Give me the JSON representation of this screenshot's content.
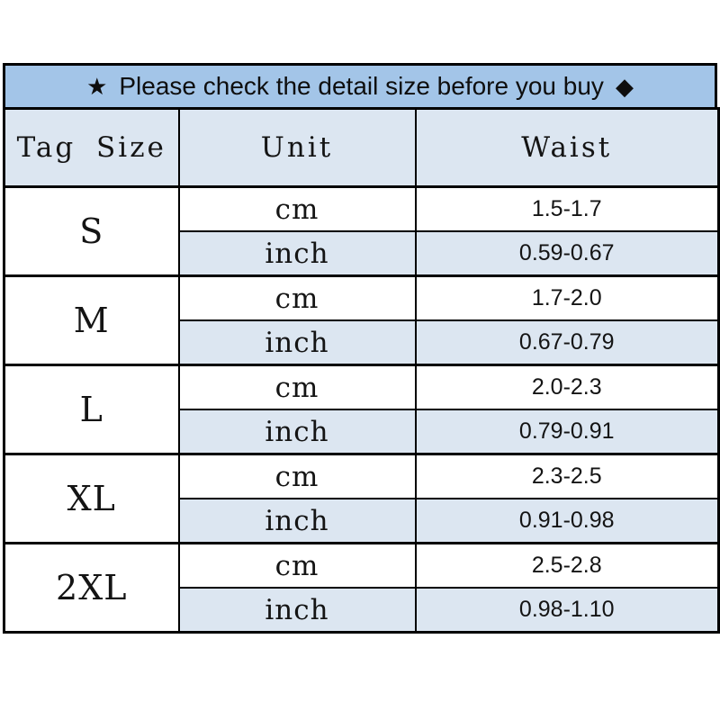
{
  "banner": {
    "star_icon": "★",
    "diamond_icon": "◆",
    "text": "Please check the detail size before you buy"
  },
  "table": {
    "headers": {
      "tag_size": "Tag Size",
      "unit": "Unit",
      "waist": "Waist"
    },
    "unit_labels": {
      "cm": "cm",
      "inch": "inch"
    },
    "rows": [
      {
        "size": "S",
        "cm": "1.5-1.7",
        "inch": "0.59-0.67"
      },
      {
        "size": "M",
        "cm": "1.7-2.0",
        "inch": "0.67-0.79"
      },
      {
        "size": "L",
        "cm": "2.0-2.3",
        "inch": "0.79-0.91"
      },
      {
        "size": "XL",
        "cm": "2.3-2.5",
        "inch": "0.91-0.98"
      },
      {
        "size": "2XL",
        "cm": "2.5-2.8",
        "inch": "0.98-1.10"
      }
    ]
  },
  "colors": {
    "banner_bg": "#a3c5e8",
    "row_alt_bg": "#dce6f1",
    "border": "#000000",
    "text": "#141414"
  },
  "chart_data": {
    "type": "table",
    "title": "Please check the detail size before you buy",
    "columns": [
      "Tag Size",
      "Unit",
      "Waist"
    ],
    "categories": [
      "S",
      "M",
      "L",
      "XL",
      "2XL"
    ],
    "series": [
      {
        "name": "Waist (cm)",
        "values": [
          "1.5-1.7",
          "1.7-2.0",
          "2.0-2.3",
          "2.3-2.5",
          "2.5-2.8"
        ]
      },
      {
        "name": "Waist (inch)",
        "values": [
          "0.59-0.67",
          "0.67-0.79",
          "0.79-0.91",
          "0.91-0.98",
          "0.98-1.10"
        ]
      }
    ]
  }
}
